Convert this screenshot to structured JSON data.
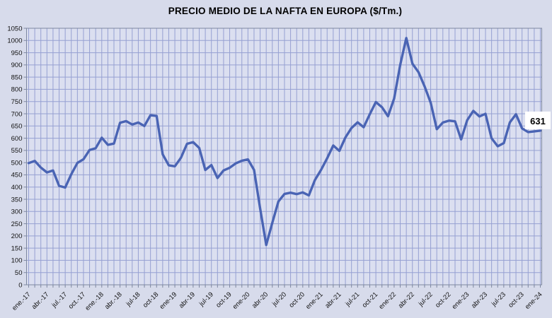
{
  "title": "PRECIO MEDIO DE LA NAFTA EN EUROPA ($/Tm.)",
  "chart_data": {
    "type": "line",
    "title": "PRECIO MEDIO DE LA NAFTA EN EUROPA ($/Tm.)",
    "unit": "$/Tm.",
    "x_frequency": "monthly",
    "n_points": 85,
    "x_range_start": "ene.-17",
    "x_range_end": "ene-24",
    "x_tick_labels": [
      "ene.-17",
      "abr.-17",
      "jul.-17",
      "oct.-17",
      "ene.-18",
      "abr.-18",
      "jul-18",
      "oct-18",
      "ene-19",
      "abr-19",
      "jul-19",
      "oct-19",
      "ene-20",
      "abr-20",
      "jul-20",
      "oct-20",
      "ene-21",
      "abr-21",
      "jul-21",
      "oct-21",
      "ene-22",
      "abr-22",
      "jul-22",
      "oct-22",
      "ene-23",
      "abr-23",
      "jul-23",
      "oct-23",
      "ene-24"
    ],
    "x_ticks_every_n_months": 3,
    "y_tick_labels": [
      "0",
      "50",
      "100",
      "150",
      "200",
      "250",
      "300",
      "350",
      "400",
      "450",
      "500",
      "550",
      "600",
      "650",
      "700",
      "750",
      "800",
      "850",
      "900",
      "950",
      "1000",
      "1050"
    ],
    "ylim": [
      0,
      1050
    ],
    "y_step": 50,
    "grid": "both",
    "legend": "none",
    "series": [
      {
        "name": "Precio medio de la nafta en Europa",
        "values": [
          498,
          507,
          480,
          460,
          468,
          405,
          398,
          453,
          499,
          514,
          552,
          559,
          602,
          573,
          578,
          663,
          670,
          656,
          664,
          650,
          694,
          691,
          534,
          489,
          485,
          520,
          577,
          584,
          560,
          470,
          490,
          437,
          468,
          479,
          497,
          508,
          513,
          470,
          312,
          163,
          254,
          341,
          372,
          377,
          371,
          378,
          366,
          429,
          470,
          518,
          570,
          548,
          603,
          642,
          665,
          645,
          698,
          748,
          727,
          690,
          762,
          900,
          1010,
          905,
          870,
          812,
          745,
          637,
          664,
          672,
          669,
          595,
          674,
          712,
          689,
          700,
          600,
          567,
          580,
          665,
          698,
          640,
          625,
          628,
          631
        ]
      }
    ],
    "last_value_label": "631",
    "colors": {
      "line": "#4a64b4",
      "grid": "#96a0d2",
      "plot_bg": "#dbdff0",
      "outer_bg": "#d7dbeb",
      "axis": "#7d87a0",
      "label_box": "#ffffff",
      "text": "#000000"
    }
  }
}
